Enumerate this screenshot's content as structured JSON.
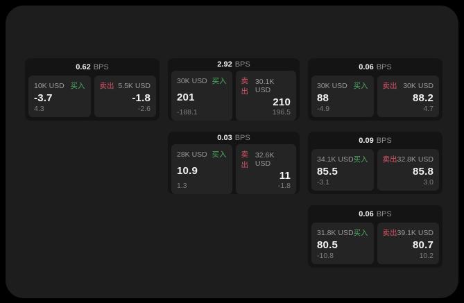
{
  "labels": {
    "buy": "买入",
    "sell": "卖出",
    "bps_unit": "BPS"
  },
  "colors": {
    "buy_green": "#4cab63",
    "sell_red": "#d75468",
    "window_bg": "#1d1d1d",
    "card_bg": "#141414",
    "panel_bg": "#242424"
  },
  "cards": [
    {
      "col": 1,
      "row": 1,
      "bps": "0.62",
      "buy": {
        "amount": "10K USD",
        "value": "-3.7",
        "sub": "4.3"
      },
      "sell": {
        "amount": "5.5K USD",
        "value": "-1.8",
        "sub": "-2.6"
      }
    },
    {
      "col": 2,
      "row": 1,
      "bps": "2.92",
      "buy": {
        "amount": "30K USD",
        "value": "201",
        "sub": "-188.1"
      },
      "sell": {
        "amount": "30.1K USD",
        "value": "210",
        "sub": "196.5"
      }
    },
    {
      "col": 3,
      "row": 1,
      "bps": "0.06",
      "buy": {
        "amount": "30K USD",
        "value": "88",
        "sub": "-4.9"
      },
      "sell": {
        "amount": "30K USD",
        "value": "88.2",
        "sub": "4.7"
      }
    },
    {
      "col": 2,
      "row": 2,
      "bps": "0.03",
      "buy": {
        "amount": "28K USD",
        "value": "10.9",
        "sub": "1.3"
      },
      "sell": {
        "amount": "32.6K USD",
        "value": "11",
        "sub": "-1.8"
      }
    },
    {
      "col": 3,
      "row": 2,
      "bps": "0.09",
      "buy": {
        "amount": "34.1K USD",
        "value": "85.5",
        "sub": "-3.1"
      },
      "sell": {
        "amount": "32.8K USD",
        "value": "85.8",
        "sub": "3.0"
      }
    },
    {
      "col": 3,
      "row": 3,
      "bps": "0.06",
      "buy": {
        "amount": "31.8K USD",
        "value": "80.5",
        "sub": "-10.8"
      },
      "sell": {
        "amount": "39.1K USD",
        "value": "80.7",
        "sub": "10.2"
      }
    }
  ]
}
